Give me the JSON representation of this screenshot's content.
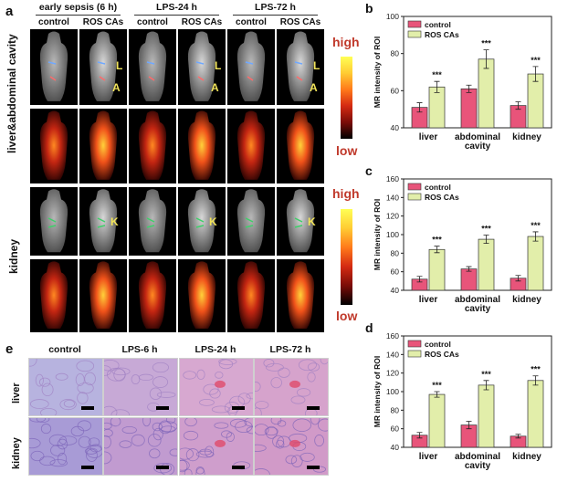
{
  "panel_a": {
    "label": "a",
    "groups": [
      "early sepsis (6 h)",
      "LPS-24 h",
      "LPS-72 h"
    ],
    "columns": [
      "control",
      "ROS CAs",
      "control",
      "ROS CAs",
      "control",
      "ROS CAs"
    ],
    "row_labels": [
      "liver&abdominal cavity",
      "kidney"
    ],
    "organ_marks_liver": [
      "L",
      "A"
    ],
    "organ_mark_kidney": "K",
    "colorbar_high": "high",
    "colorbar_low": "low"
  },
  "panel_e": {
    "label": "e",
    "columns": [
      "control",
      "LPS-6 h",
      "LPS-24 h",
      "LPS-72 h"
    ],
    "rows": [
      "liver",
      "kidney"
    ]
  },
  "chart_data": [
    {
      "panel": "b",
      "type": "bar",
      "categories": [
        "liver",
        "abdominal\ncavity",
        "kidney"
      ],
      "series": [
        {
          "name": "control",
          "values": [
            51,
            61,
            52
          ],
          "errors": [
            2.5,
            2,
            2
          ]
        },
        {
          "name": "ROS CAs",
          "values": [
            62,
            77,
            69
          ],
          "errors": [
            3,
            5,
            4
          ]
        }
      ],
      "significance": [
        "***",
        "***",
        "***"
      ],
      "ylabel": "MR intensity of ROI",
      "ylim": [
        40,
        100
      ],
      "yticks": [
        40,
        60,
        80,
        100
      ],
      "colors": {
        "control": "#e8547a",
        "ROS CAs": "#e2eeaa"
      },
      "legend": "top-left"
    },
    {
      "panel": "c",
      "type": "bar",
      "categories": [
        "liver",
        "abdominal\ncavity",
        "kidney"
      ],
      "series": [
        {
          "name": "control",
          "values": [
            52,
            63,
            53
          ],
          "errors": [
            3,
            2.5,
            3
          ]
        },
        {
          "name": "ROS CAs",
          "values": [
            84,
            95,
            98
          ],
          "errors": [
            3.5,
            4.5,
            5
          ]
        }
      ],
      "significance": [
        "***",
        "***",
        "***"
      ],
      "ylabel": "MR intensity of ROI",
      "ylim": [
        40,
        160
      ],
      "yticks": [
        40,
        60,
        80,
        100,
        120,
        140,
        160
      ],
      "colors": {
        "control": "#e8547a",
        "ROS CAs": "#e2eeaa"
      },
      "legend": "top-left"
    },
    {
      "panel": "d",
      "type": "bar",
      "categories": [
        "liver",
        "abdominal\ncavity",
        "kidney"
      ],
      "series": [
        {
          "name": "control",
          "values": [
            53,
            64,
            52
          ],
          "errors": [
            3,
            4,
            2
          ]
        },
        {
          "name": "ROS CAs",
          "values": [
            97,
            107,
            112
          ],
          "errors": [
            3,
            5,
            5
          ]
        }
      ],
      "significance": [
        "***",
        "***",
        "***"
      ],
      "ylabel": "MR intensity of ROI",
      "ylim": [
        40,
        160
      ],
      "yticks": [
        40,
        60,
        80,
        100,
        120,
        140,
        160
      ],
      "colors": {
        "control": "#e8547a",
        "ROS CAs": "#e2eeaa"
      },
      "legend": "top-left"
    }
  ]
}
